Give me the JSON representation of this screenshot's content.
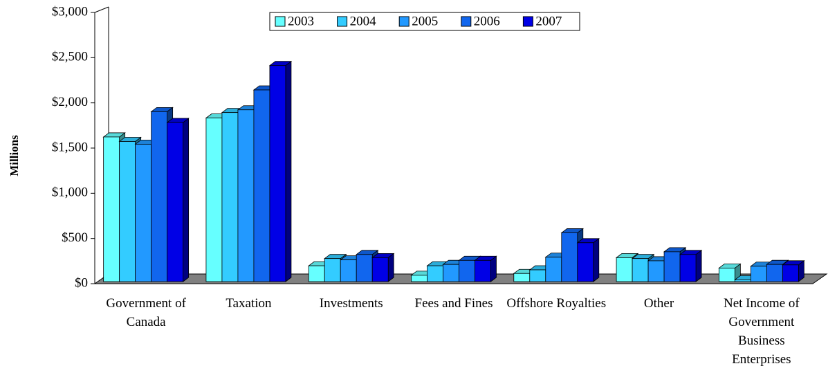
{
  "chart_data": {
    "type": "bar3d",
    "y_label": "Millions",
    "categories": [
      "Government of Canada",
      "Taxation",
      "Investments",
      "Fees and Fines",
      "Offshore Royalties",
      "Other",
      "Net Income of Government Business Enterprises"
    ],
    "series": [
      {
        "name": "2003",
        "color": "#66ffff",
        "values": [
          1600,
          1810,
          175,
          70,
          90,
          265,
          150
        ]
      },
      {
        "name": "2004",
        "color": "#33ccff",
        "values": [
          1550,
          1870,
          255,
          175,
          130,
          255,
          20
        ]
      },
      {
        "name": "2005",
        "color": "#2299ff",
        "values": [
          1520,
          1900,
          240,
          190,
          270,
          230,
          170
        ]
      },
      {
        "name": "2006",
        "color": "#1166ee",
        "values": [
          1880,
          2120,
          300,
          235,
          540,
          330,
          190
        ]
      },
      {
        "name": "2007",
        "color": "#0000e6",
        "values": [
          1760,
          2390,
          265,
          235,
          430,
          300,
          185
        ]
      }
    ],
    "ylim": [
      0,
      3000
    ],
    "yticks": [
      {
        "value": 0,
        "label": "$0"
      },
      {
        "value": 500,
        "label": "$500"
      },
      {
        "value": 1000,
        "label": "$1,000"
      },
      {
        "value": 1500,
        "label": "$1,500"
      },
      {
        "value": 2000,
        "label": "$2,000"
      },
      {
        "value": 2500,
        "label": "$2,500"
      },
      {
        "value": 3000,
        "label": "$3,000"
      }
    ],
    "legend": "top"
  }
}
